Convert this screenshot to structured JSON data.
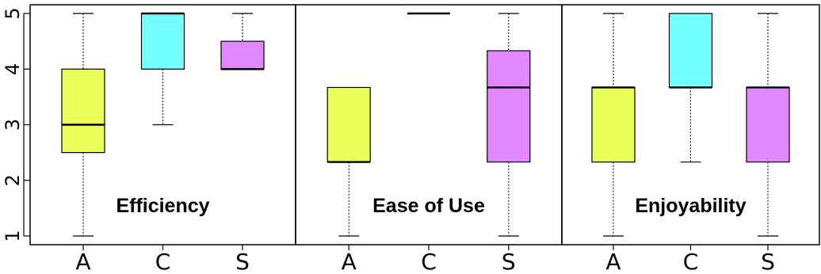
{
  "chart_data": {
    "type": "boxplot",
    "ylim": [
      1,
      5
    ],
    "yticks": [
      "1",
      "2",
      "3",
      "4",
      "5"
    ],
    "categories": [
      "A",
      "C",
      "S"
    ],
    "colors": {
      "A": "#ebff5b",
      "C": "#73ffff",
      "S": "#e288ff"
    },
    "panels": [
      {
        "title": "Efficiency",
        "boxes": [
          {
            "category": "A",
            "min": 1,
            "q1": 2.5,
            "median": 3,
            "q3": 4,
            "max": 5
          },
          {
            "category": "C",
            "min": 3,
            "q1": 4,
            "median": 5,
            "q3": 5,
            "max": 5
          },
          {
            "category": "S",
            "min": 4,
            "q1": 4,
            "median": 4,
            "q3": 4.5,
            "max": 5
          }
        ]
      },
      {
        "title": "Ease of Use",
        "boxes": [
          {
            "category": "A",
            "min": 1,
            "q1": 2.33,
            "median": 2.33,
            "q3": 3.67,
            "max": 3.67
          },
          {
            "category": "C",
            "min": 5,
            "q1": 5,
            "median": 5,
            "q3": 5,
            "max": 5
          },
          {
            "category": "S",
            "min": 1,
            "q1": 2.33,
            "median": 3.67,
            "q3": 4.33,
            "max": 5
          }
        ]
      },
      {
        "title": "Enjoyability",
        "boxes": [
          {
            "category": "A",
            "min": 1,
            "q1": 2.33,
            "median": 3.67,
            "q3": 3.67,
            "max": 5
          },
          {
            "category": "C",
            "min": 2.33,
            "q1": 3.67,
            "median": 3.67,
            "q3": 5,
            "max": 5
          },
          {
            "category": "S",
            "min": 1,
            "q1": 2.33,
            "median": 3.67,
            "q3": 3.67,
            "max": 5
          }
        ]
      }
    ]
  }
}
